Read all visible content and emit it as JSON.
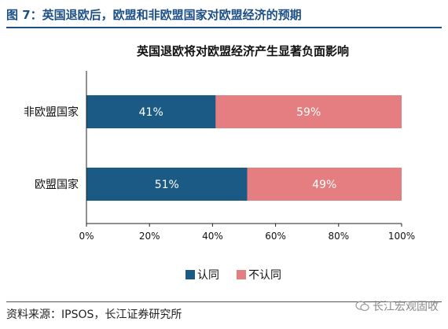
{
  "figure_caption": "图 7：英国退欧后，欧盟和非欧盟国家对欧盟经济的预期",
  "source_note": "资料来源：IPSOS，长江证券研究所",
  "watermark_text": "长江宏观固收",
  "colors": {
    "caption": "#1c4f86",
    "agree": "#1a5a85",
    "disagree": "#e57e80"
  },
  "chart_data": {
    "type": "bar",
    "orientation": "horizontal",
    "stacked": true,
    "percent": true,
    "title": "英国退欧将对欧盟经济产生显著负面影响",
    "categories": [
      "非欧盟国家",
      "欧盟国家"
    ],
    "series": [
      {
        "name": "认同",
        "values": [
          41,
          51
        ],
        "labels": [
          "41%",
          "51%"
        ],
        "color": "#1a5a85"
      },
      {
        "name": "不认同",
        "values": [
          59,
          49
        ],
        "labels": [
          "59%",
          "49%"
        ],
        "color": "#e57e80"
      }
    ],
    "xlim": [
      0,
      100
    ],
    "xticks": [
      "0%",
      "20%",
      "40%",
      "60%",
      "80%",
      "100%"
    ],
    "legend_position": "bottom",
    "grid": false
  }
}
